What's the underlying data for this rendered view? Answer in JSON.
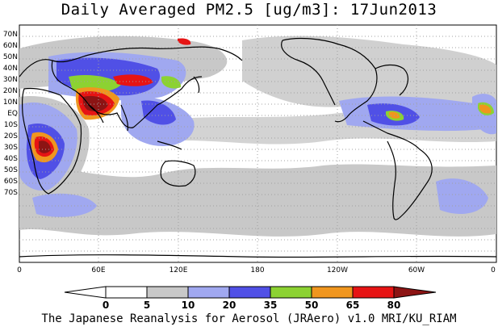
{
  "title": "Daily Averaged PM2.5 [ug/m3]: 17Jun2013",
  "credit": "The Japanese Reanalysis for Aerosol (JRAero) v1.0 MRI/KU_RIAM",
  "latitude_labels": [
    "70N",
    "60N",
    "50N",
    "40N",
    "30N",
    "20N",
    "10N",
    "EQ",
    "10S",
    "20S",
    "30S",
    "40S",
    "50S",
    "60S",
    "70S"
  ],
  "longitude_labels": [
    "0",
    "60E",
    "120E",
    "180",
    "120W",
    "60W",
    "0"
  ],
  "colorbar": {
    "ticks": [
      "0",
      "5",
      "10",
      "20",
      "35",
      "50",
      "65",
      "80"
    ],
    "colors": [
      "#ffffff",
      "#c8c8c8",
      "#a0a8f0",
      "#5050e6",
      "#8cd232",
      "#f0961e",
      "#e61414",
      "#8c1414"
    ]
  },
  "colors": {
    "land_outline": "#000000",
    "grid": "#a0a0a0",
    "background": "#ffffff"
  }
}
